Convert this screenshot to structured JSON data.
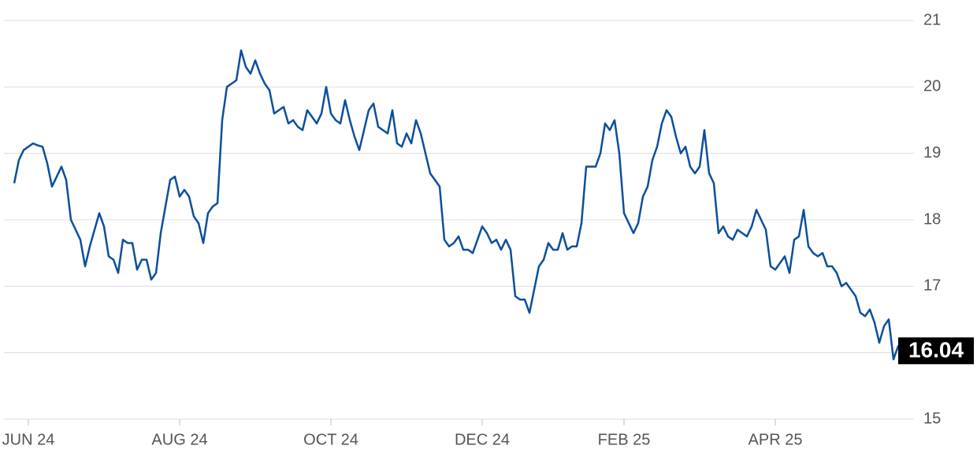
{
  "chart_data": {
    "type": "line",
    "categories": [
      null,
      null,
      null,
      "JUN 24",
      null,
      null,
      null,
      null,
      null,
      null,
      null,
      null,
      null,
      null,
      null,
      null,
      null,
      null,
      null,
      null,
      null,
      null,
      null,
      null,
      null,
      null,
      null,
      null,
      null,
      null,
      null,
      null,
      null,
      null,
      null,
      "AUG 24",
      null,
      null,
      null,
      null,
      null,
      null,
      null,
      null,
      null,
      null,
      null,
      null,
      null,
      null,
      null,
      null,
      null,
      null,
      null,
      null,
      null,
      null,
      null,
      null,
      null,
      null,
      null,
      null,
      null,
      null,
      null,
      "OCT 24",
      null,
      null,
      null,
      null,
      null,
      null,
      null,
      null,
      null,
      null,
      null,
      null,
      null,
      null,
      null,
      null,
      null,
      null,
      null,
      null,
      null,
      null,
      null,
      null,
      null,
      null,
      null,
      null,
      null,
      null,
      null,
      "DEC 24",
      null,
      null,
      null,
      null,
      null,
      null,
      null,
      null,
      null,
      null,
      null,
      null,
      null,
      null,
      null,
      null,
      null,
      null,
      null,
      null,
      null,
      null,
      null,
      null,
      null,
      null,
      null,
      null,
      null,
      "FEB 25",
      null,
      null,
      null,
      null,
      null,
      null,
      null,
      null,
      null,
      null,
      null,
      null,
      null,
      null,
      null,
      null,
      null,
      null,
      null,
      null,
      null,
      null,
      null,
      null,
      null,
      null,
      null,
      null,
      null,
      null,
      null,
      "APR 25",
      null,
      null,
      null,
      null,
      null,
      null,
      null,
      null,
      null,
      null,
      null,
      null,
      null,
      null,
      null,
      null,
      null,
      null,
      null,
      null,
      null,
      null,
      null,
      null,
      null,
      null,
      null
    ],
    "values": [
      18.55,
      18.9,
      19.05,
      19.1,
      19.15,
      19.12,
      19.1,
      18.85,
      18.5,
      18.65,
      18.8,
      18.6,
      18.0,
      17.85,
      17.7,
      17.3,
      17.6,
      17.85,
      18.1,
      17.9,
      17.45,
      17.4,
      17.2,
      17.7,
      17.65,
      17.65,
      17.25,
      17.4,
      17.4,
      17.1,
      17.2,
      17.8,
      18.2,
      18.6,
      18.65,
      18.35,
      18.45,
      18.35,
      18.05,
      17.95,
      17.65,
      18.1,
      18.2,
      18.25,
      19.5,
      20.0,
      20.05,
      20.1,
      20.55,
      20.3,
      20.2,
      20.4,
      20.2,
      20.05,
      19.95,
      19.6,
      19.65,
      19.7,
      19.45,
      19.5,
      19.4,
      19.35,
      19.65,
      19.55,
      19.45,
      19.6,
      20.0,
      19.6,
      19.5,
      19.45,
      19.8,
      19.5,
      19.25,
      19.05,
      19.35,
      19.65,
      19.75,
      19.4,
      19.35,
      19.3,
      19.65,
      19.15,
      19.1,
      19.3,
      19.15,
      19.5,
      19.3,
      19.0,
      18.7,
      18.6,
      18.5,
      17.7,
      17.6,
      17.65,
      17.75,
      17.55,
      17.55,
      17.5,
      17.7,
      17.9,
      17.8,
      17.65,
      17.7,
      17.55,
      17.7,
      17.55,
      16.85,
      16.8,
      16.8,
      16.6,
      16.95,
      17.3,
      17.4,
      17.65,
      17.55,
      17.55,
      17.8,
      17.55,
      17.6,
      17.6,
      17.95,
      18.8,
      18.8,
      18.8,
      19.0,
      19.45,
      19.35,
      19.5,
      19.0,
      18.1,
      17.95,
      17.8,
      17.95,
      18.35,
      18.5,
      18.9,
      19.1,
      19.45,
      19.65,
      19.55,
      19.25,
      19.0,
      19.1,
      18.8,
      18.7,
      18.8,
      19.35,
      18.7,
      18.55,
      17.8,
      17.9,
      17.75,
      17.7,
      17.85,
      17.8,
      17.75,
      17.9,
      18.15,
      18.0,
      17.85,
      17.3,
      17.25,
      17.35,
      17.45,
      17.2,
      17.7,
      17.75,
      18.15,
      17.6,
      17.5,
      17.45,
      17.5,
      17.3,
      17.3,
      17.2,
      17.0,
      17.05,
      16.95,
      16.85,
      16.6,
      16.55,
      16.65,
      16.45,
      16.15,
      16.4,
      16.5,
      15.9,
      16.1,
      16.04
    ],
    "color": "#0b4f9c",
    "ylim": [
      15,
      21
    ],
    "yticks": [
      15,
      16,
      17,
      18,
      19,
      20,
      21
    ],
    "grid": true
  }
}
